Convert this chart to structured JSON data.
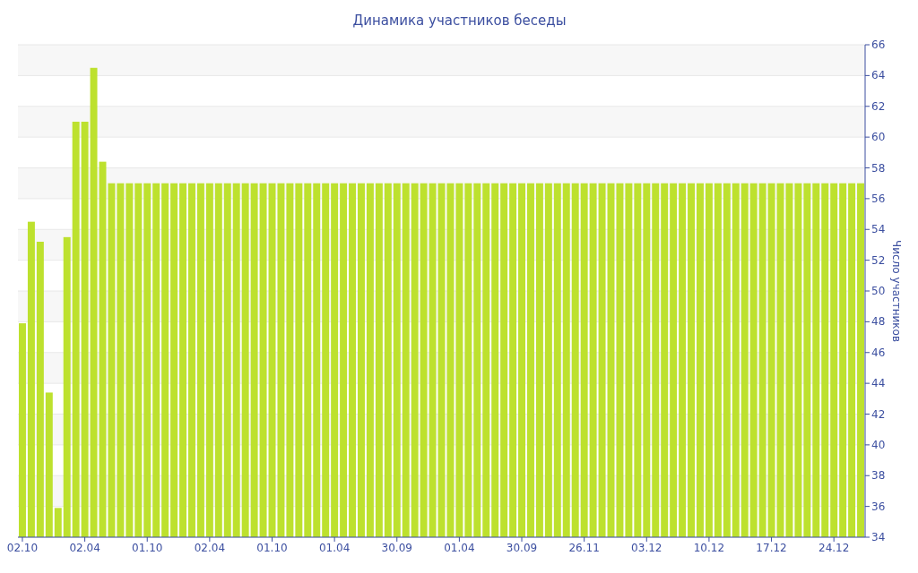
{
  "chart_data": {
    "type": "bar",
    "title": "Динамика участников беседы",
    "y2label": "Число участников",
    "categories": [
      "02.10",
      null,
      null,
      null,
      null,
      null,
      null,
      "02.04",
      null,
      null,
      null,
      null,
      null,
      null,
      "01.10",
      null,
      null,
      null,
      null,
      null,
      null,
      "02.04",
      null,
      null,
      null,
      null,
      null,
      null,
      "01.10",
      null,
      null,
      null,
      null,
      null,
      null,
      "01.04",
      null,
      null,
      null,
      null,
      null,
      null,
      "30.09",
      null,
      null,
      null,
      null,
      null,
      null,
      "01.04",
      null,
      null,
      null,
      null,
      null,
      null,
      "30.09",
      null,
      null,
      null,
      null,
      null,
      null,
      "26.11",
      null,
      null,
      null,
      null,
      null,
      null,
      "03.12",
      null,
      null,
      null,
      null,
      null,
      null,
      "10.12",
      null,
      null,
      null,
      null,
      null,
      null,
      "17.12",
      null,
      null,
      null,
      null,
      null,
      null,
      "24.12",
      null,
      null,
      null
    ],
    "series": [
      {
        "color": "#bde12e",
        "axis": "y2",
        "values": [
          47.9,
          54.5,
          53.2,
          43.4,
          35.9,
          53.5,
          61,
          61,
          64.5,
          58.4,
          57,
          57,
          57,
          57,
          57,
          57,
          57,
          57,
          57,
          57,
          57,
          57,
          57,
          57,
          57,
          57,
          57,
          57,
          57,
          57,
          57,
          57,
          57,
          57,
          57,
          57,
          57,
          57,
          57,
          57,
          57,
          57,
          57,
          57,
          57,
          57,
          57,
          57,
          57,
          57,
          57,
          57,
          57,
          57,
          57,
          57,
          57,
          57,
          57,
          57,
          57,
          57,
          57,
          57,
          57,
          57,
          57,
          57,
          57,
          57,
          57,
          57,
          57,
          57,
          57,
          57,
          57,
          57,
          57,
          57,
          57,
          57,
          57,
          57,
          57,
          57,
          57,
          57,
          57,
          57,
          57,
          57,
          57,
          57,
          57
        ]
      }
    ],
    "y2lim": [
      34,
      66
    ],
    "y2ticks": [
      34,
      36,
      38,
      40,
      42,
      44,
      46,
      48,
      50,
      52,
      54,
      56,
      58,
      60,
      62,
      64,
      66
    ],
    "grid": true
  }
}
